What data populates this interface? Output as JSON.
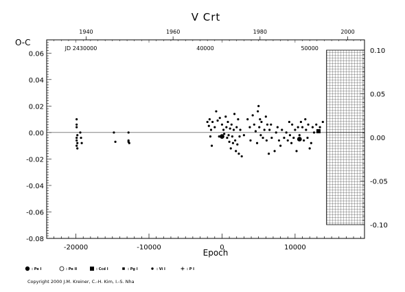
{
  "chart_data": {
    "type": "scatter",
    "title": "V Crt",
    "xlabel": "Epoch",
    "ylabel": "O-C",
    "xlim": [
      -24000,
      19500
    ],
    "ylim": [
      -0.08,
      0.07
    ],
    "right_ylim": [
      -0.1,
      0.1
    ],
    "x_ticks": [
      "-20000",
      "-10000",
      "0",
      "10000"
    ],
    "x_tick_values": [
      -20000,
      -10000,
      0,
      10000
    ],
    "y_ticks": [
      "-0.08",
      "-0.06",
      "-0.04",
      "-0.02",
      "0.00",
      "0.02",
      "0.04",
      "0.06"
    ],
    "y_tick_values": [
      -0.08,
      -0.06,
      -0.04,
      -0.02,
      0.0,
      0.02,
      0.04,
      0.06
    ],
    "right_ticks": [
      "-0.10",
      "-0.05",
      "0.00",
      "0.05",
      "0.10"
    ],
    "right_tick_values": [
      -0.1,
      -0.05,
      0.0,
      0.05,
      0.1
    ],
    "top_year_ticks": [
      "1940",
      "1960",
      "1980",
      "2000"
    ],
    "top_year_epochs": [
      -18600,
      -6700,
      5200,
      17200
    ],
    "jd_labels": [
      {
        "text": "JD 2430000",
        "epoch": -19300
      },
      {
        "text": "40000",
        "epoch": -2300
      },
      {
        "text": "50000",
        "epoch": 12000
      }
    ],
    "grid": false,
    "zero_line": true,
    "future_hatch_from_epoch": 14300,
    "legend": [
      {
        "symbol": "big-dot",
        "label": ": Pe I"
      },
      {
        "symbol": "open-circle",
        "label": ": Pe II"
      },
      {
        "symbol": "filled-square",
        "label": ": Ccd I"
      },
      {
        "symbol": "small-square",
        "label": ": Pg I"
      },
      {
        "symbol": "small-dot",
        "label": ": Vi I"
      },
      {
        "symbol": "plus",
        "label": ": P I"
      }
    ],
    "series": [
      {
        "symbol": "small-dot",
        "points": [
          [
            -19900,
            0.01
          ],
          [
            -19900,
            0.006
          ],
          [
            -19900,
            0.004
          ],
          [
            -19800,
            -0.002
          ],
          [
            -19900,
            -0.004
          ],
          [
            -19900,
            -0.006
          ],
          [
            -19800,
            -0.008
          ],
          [
            -19900,
            -0.01
          ],
          [
            -19800,
            -0.012
          ],
          [
            -19400,
            0.0
          ],
          [
            -19300,
            -0.004
          ],
          [
            -19200,
            -0.008
          ],
          [
            -14800,
            0.0
          ],
          [
            -14600,
            -0.007
          ],
          [
            -12800,
            0.0
          ],
          [
            -12800,
            -0.007
          ],
          [
            -12700,
            -0.008
          ],
          [
            -12800,
            -0.006
          ],
          [
            -2000,
            0.008
          ],
          [
            -1800,
            0.005
          ],
          [
            -1700,
            0.01
          ],
          [
            -1500,
            0.002
          ],
          [
            -1600,
            -0.003
          ],
          [
            -1400,
            -0.01
          ],
          [
            -1300,
            0.008
          ],
          [
            -1000,
            0.004
          ],
          [
            -800,
            0.016
          ],
          [
            -600,
            0.009
          ],
          [
            -400,
            -0.003
          ],
          [
            -300,
            0.011
          ],
          [
            0,
            0.006
          ],
          [
            200,
            0.002
          ],
          [
            300,
            -0.001
          ],
          [
            500,
            0.012
          ],
          [
            600,
            0.004
          ],
          [
            700,
            -0.004
          ],
          [
            800,
            0.008
          ],
          [
            900,
            -0.002
          ],
          [
            1000,
            -0.007
          ],
          [
            1100,
            0.003
          ],
          [
            1200,
            -0.012
          ],
          [
            1300,
            0.006
          ],
          [
            1400,
            -0.003
          ],
          [
            1500,
            -0.008
          ],
          [
            1600,
            0.002
          ],
          [
            1700,
            0.014
          ],
          [
            1800,
            -0.006
          ],
          [
            1900,
            -0.014
          ],
          [
            2000,
            0.004
          ],
          [
            2100,
            -0.009
          ],
          [
            2200,
            0.01
          ],
          [
            2300,
            -0.016
          ],
          [
            2400,
            -0.003
          ],
          [
            2500,
            0.002
          ],
          [
            2700,
            -0.018
          ],
          [
            3000,
            -0.002
          ],
          [
            3500,
            0.01
          ],
          [
            3800,
            0.004
          ],
          [
            3900,
            -0.006
          ],
          [
            4200,
            0.013
          ],
          [
            4400,
            0.006
          ],
          [
            4600,
            0.001
          ],
          [
            4800,
            -0.008
          ],
          [
            4900,
            0.016
          ],
          [
            5000,
            0.02
          ],
          [
            5100,
            0.004
          ],
          [
            5200,
            0.01
          ],
          [
            5300,
            -0.002
          ],
          [
            5400,
            0.008
          ],
          [
            5600,
            -0.004
          ],
          [
            5800,
            0.002
          ],
          [
            6000,
            0.012
          ],
          [
            6100,
            -0.006
          ],
          [
            6200,
            0.006
          ],
          [
            6400,
            -0.016
          ],
          [
            6500,
            0.002
          ],
          [
            6700,
            0.006
          ],
          [
            6800,
            -0.004
          ],
          [
            7200,
            -0.014
          ],
          [
            7400,
            0.0
          ],
          [
            7600,
            0.004
          ],
          [
            7800,
            -0.006
          ],
          [
            8000,
            -0.01
          ],
          [
            8200,
            0.002
          ],
          [
            8500,
            -0.004
          ],
          [
            8800,
            0.0
          ],
          [
            9000,
            -0.006
          ],
          [
            9200,
            0.008
          ],
          [
            9300,
            -0.002
          ],
          [
            9500,
            -0.008
          ],
          [
            9600,
            0.006
          ],
          [
            9800,
            -0.004
          ],
          [
            10000,
            0.002
          ],
          [
            10200,
            -0.014
          ],
          [
            10400,
            0.004
          ],
          [
            10600,
            -0.002
          ],
          [
            10800,
            0.008
          ],
          [
            11000,
            0.004
          ],
          [
            11200,
            -0.006
          ],
          [
            11400,
            0.01
          ],
          [
            11500,
            0.002
          ],
          [
            11700,
            -0.004
          ],
          [
            11800,
            0.006
          ],
          [
            12000,
            -0.012
          ],
          [
            12200,
            -0.008
          ],
          [
            12400,
            0.004
          ],
          [
            12600,
            0.0
          ],
          [
            12900,
            0.006
          ],
          [
            13400,
            0.004
          ],
          [
            13800,
            0.008
          ]
        ]
      },
      {
        "symbol": "big-dot",
        "points": [
          [
            0,
            -0.003
          ],
          [
            10600,
            -0.005
          ]
        ]
      },
      {
        "symbol": "filled-square",
        "points": [
          [
            13200,
            0.001
          ]
        ]
      }
    ]
  },
  "copyright": "Copyright 2000 J.M. Kreiner, C.-H. Kim, I.-S. Nha"
}
